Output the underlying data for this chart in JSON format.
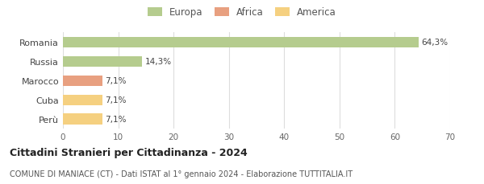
{
  "categories": [
    "Romania",
    "Russia",
    "Marocco",
    "Cuba",
    "Perù"
  ],
  "values": [
    64.3,
    14.3,
    7.1,
    7.1,
    7.1
  ],
  "labels": [
    "64,3%",
    "14,3%",
    "7,1%",
    "7,1%",
    "7,1%"
  ],
  "bar_colors": [
    "#b5cc8e",
    "#b5cc8e",
    "#e8a080",
    "#f5d080",
    "#f5d080"
  ],
  "legend_items": [
    {
      "label": "Europa",
      "color": "#b5cc8e"
    },
    {
      "label": "Africa",
      "color": "#e8a080"
    },
    {
      "label": "America",
      "color": "#f5d080"
    }
  ],
  "xlim": [
    0,
    70
  ],
  "xticks": [
    0,
    10,
    20,
    30,
    40,
    50,
    60,
    70
  ],
  "title": "Cittadini Stranieri per Cittadinanza - 2024",
  "subtitle": "COMUNE DI MANIACE (CT) - Dati ISTAT al 1° gennaio 2024 - Elaborazione TUTTITALIA.IT",
  "background_color": "#ffffff",
  "grid_color": "#dddddd"
}
